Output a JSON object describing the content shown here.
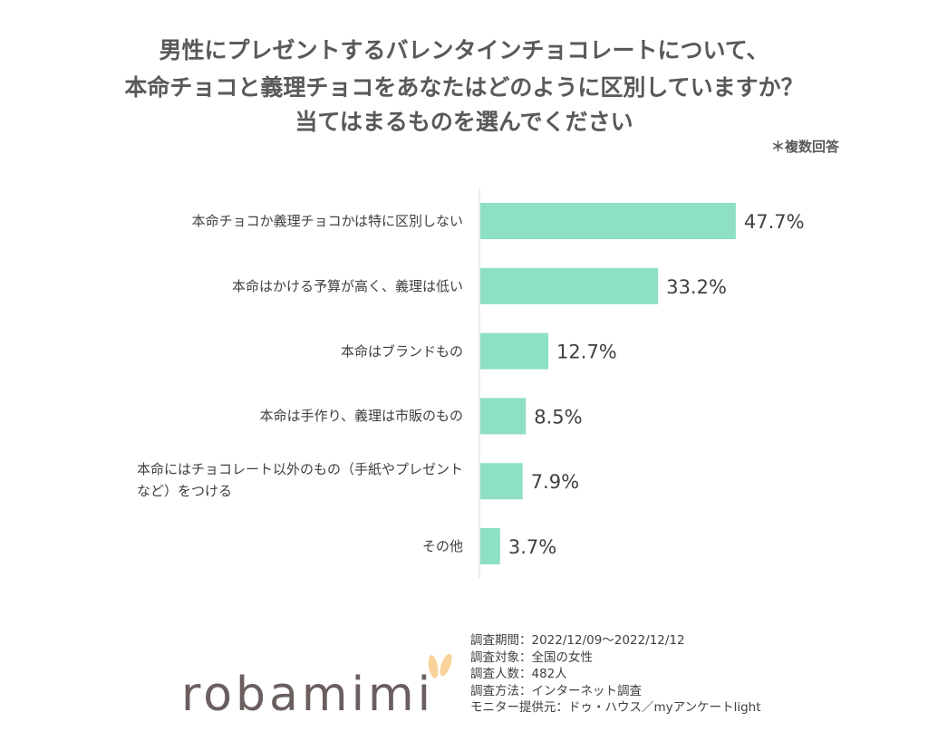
{
  "title_lines": [
    "男性にプレゼントするバレンタインチョコレートについて、",
    "本命チョコと義理チョコをあなたはどのように区別していますか？",
    "当てはまるものを選んでください"
  ],
  "note": "＊複数回答",
  "chart_data": {
    "type": "bar",
    "orientation": "horizontal",
    "categories": [
      "本命チョコか義理チョコかは特に区別しない",
      "本命はかける予算が高く、義理は低い",
      "本命はブランドもの",
      "本命は手作り、義理は市販のもの",
      "本命にはチョコレート以外のもの（手紙やプレゼントなど）をつける",
      "その他"
    ],
    "values": [
      47.7,
      33.2,
      12.7,
      8.5,
      7.9,
      3.7
    ],
    "data_labels": [
      "47.7%",
      "33.2%",
      "12.7%",
      "8.5%",
      "7.9%",
      "3.7%"
    ],
    "unit": "%",
    "xlim": [
      0,
      100
    ],
    "grid": false,
    "bar_color": "#8de0c5"
  },
  "footer": [
    "調査期間：2022/12/09～2022/12/12",
    "調査対象：全国の女性",
    "調査人数：482人",
    "調査方法：インターネット調査",
    "モニター提供元：ドゥ・ハウス／myアンケートlight"
  ],
  "logo": {
    "text": "robamimi",
    "text_color": "#6b5e5e",
    "ear_color": "#f9d49a"
  }
}
